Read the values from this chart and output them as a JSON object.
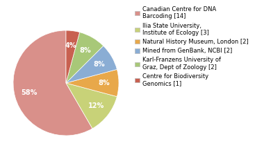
{
  "labels": [
    "Canadian Centre for DNA\nBarcoding [14]",
    "Ilia State University,\nInstitute of Ecology [3]",
    "Natural History Museum, London [2]",
    "Mined from GenBank, NCBI [2]",
    "Karl-Franzens University of\nGraz, Dept of Zoology [2]",
    "Centre for Biodiversity\nGenomics [1]"
  ],
  "values": [
    14,
    3,
    2,
    2,
    2,
    1
  ],
  "colors": [
    "#d9908a",
    "#c8d278",
    "#e8a84a",
    "#8aadd4",
    "#a8c878",
    "#c86050"
  ],
  "legend_labels": [
    "Canadian Centre for DNA\nBarcoding [14]",
    "Ilia State University,\nInstitute of Ecology [3]",
    "Natural History Museum, London [2]",
    "Mined from GenBank, NCBI [2]",
    "Karl-Franzens University of\nGraz, Dept of Zoology [2]",
    "Centre for Biodiversity\nGenomics [1]"
  ],
  "startangle": 90,
  "pct_fontsize": 7,
  "legend_fontsize": 6.0
}
